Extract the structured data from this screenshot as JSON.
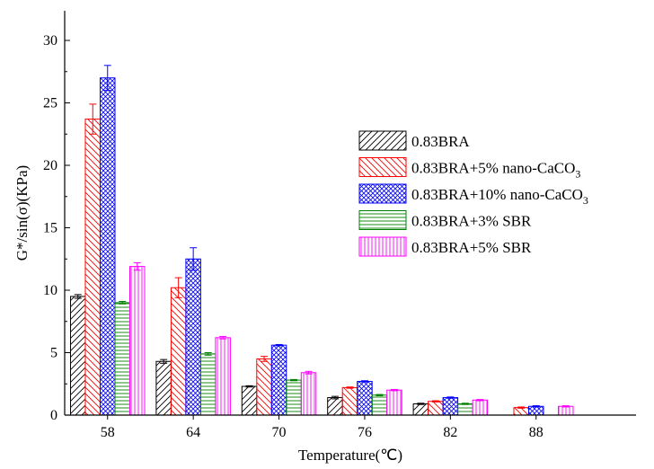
{
  "chart_data": {
    "type": "bar",
    "xlabel": "Temperature(℃)",
    "ylabel": "G*/sin(σ)(KPa)",
    "categories": [
      "58",
      "64",
      "70",
      "76",
      "82",
      "88"
    ],
    "ylim": [
      0,
      32
    ],
    "yticks": [
      0,
      5,
      10,
      15,
      20,
      25,
      30
    ],
    "legend_position": "right",
    "grid": false,
    "series": [
      {
        "name": "0.83BRA",
        "name_sub": "",
        "color": "#000000",
        "pattern": "diag-right",
        "values": [
          9.5,
          4.3,
          2.3,
          1.4,
          0.9,
          null
        ],
        "errors": [
          0.15,
          0.15,
          0.05,
          0.1,
          0.05,
          null
        ]
      },
      {
        "name": "0.83BRA+5% nano-CaCO",
        "name_sub": "3",
        "color": "#ff0000",
        "pattern": "diag-left",
        "values": [
          23.7,
          10.2,
          4.5,
          2.2,
          1.1,
          0.6
        ],
        "errors": [
          1.2,
          0.8,
          0.2,
          0.05,
          0.05,
          0.05
        ]
      },
      {
        "name": "0.83BRA+10% nano-CaCO",
        "name_sub": "3",
        "color": "#0000ff",
        "pattern": "cross",
        "values": [
          27.0,
          12.5,
          5.6,
          2.7,
          1.4,
          0.7
        ],
        "errors": [
          1.0,
          0.9,
          0.05,
          0.05,
          0.05,
          0.05
        ]
      },
      {
        "name": "0.83BRA+3% SBR",
        "name_sub": "",
        "color": "#008000",
        "pattern": "horizontal",
        "values": [
          9.0,
          4.9,
          2.8,
          1.6,
          0.9,
          null
        ],
        "errors": [
          0.1,
          0.1,
          0.05,
          0.05,
          0.05,
          null
        ]
      },
      {
        "name": "0.83BRA+5% SBR",
        "name_sub": "",
        "color": "#ff00ff",
        "pattern": "vertical",
        "values": [
          11.9,
          6.2,
          3.4,
          2.0,
          1.2,
          0.7
        ],
        "errors": [
          0.3,
          0.1,
          0.1,
          0.05,
          0.05,
          0.05
        ]
      }
    ]
  }
}
